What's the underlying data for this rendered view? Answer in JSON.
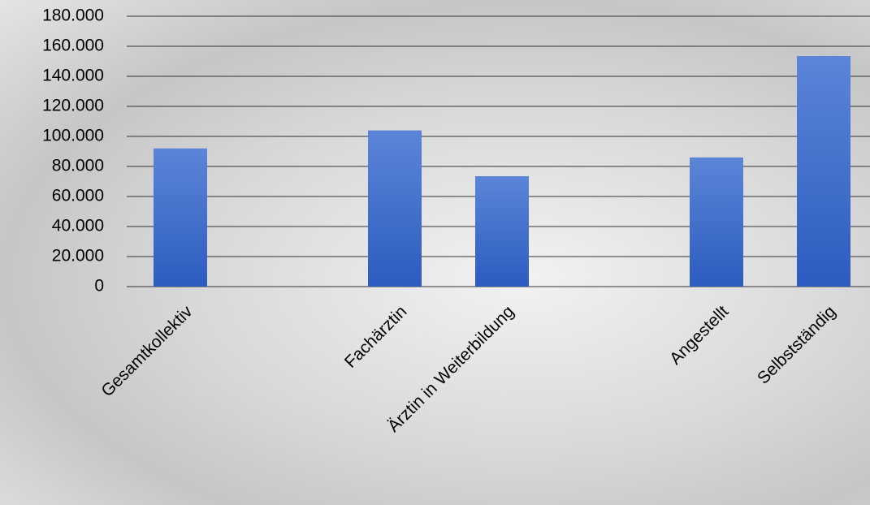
{
  "chart_data": {
    "type": "bar",
    "categories": [
      "Gesamtkollektiv",
      null,
      "Fachärztin",
      "Ärztin in Weiterbildung",
      null,
      "Angestellt",
      "Selbstständig"
    ],
    "values": [
      92000,
      null,
      104000,
      73500,
      null,
      86000,
      153500
    ],
    "color": "#3a68c8",
    "ylim": [
      0,
      180000
    ],
    "yticks": [
      0,
      {
        "value": 20000,
        "label": "20.000"
      },
      {
        "value": 40000,
        "label": "40.000"
      },
      {
        "value": 60000,
        "label": "60.000"
      },
      {
        "value": 80000,
        "label": "80.000"
      },
      {
        "value": 100000,
        "label": "100.000"
      },
      {
        "value": 120000,
        "label": "120.000"
      },
      {
        "value": 140000,
        "label": "140.000"
      },
      {
        "value": 160000,
        "label": "160.000"
      },
      {
        "value": 180000,
        "label": "180.000"
      }
    ],
    "grid": true
  }
}
